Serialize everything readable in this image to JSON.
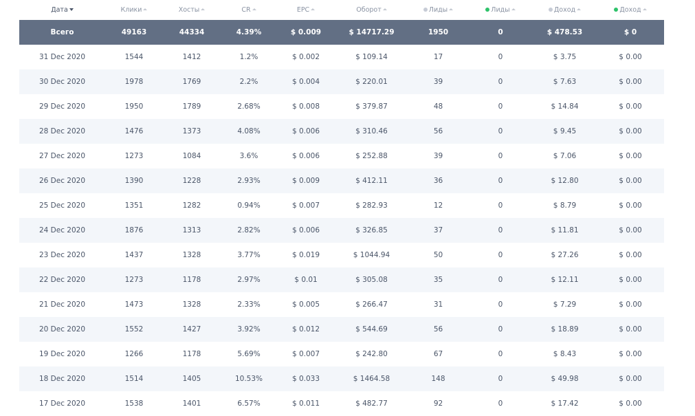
{
  "colors": {
    "header_text": "#8a93a3",
    "total_bg": "#626f84",
    "row_alt_bg": "#f3f6fa",
    "dot_gray": "#c7ccd6",
    "dot_green": "#2ec26a"
  },
  "columns": [
    {
      "key": "date",
      "label": "Дата",
      "sort": "desc",
      "dot": null
    },
    {
      "key": "clicks",
      "label": "Клики",
      "sort": "asc",
      "dot": null
    },
    {
      "key": "hosts",
      "label": "Хосты",
      "sort": "asc",
      "dot": null
    },
    {
      "key": "cr",
      "label": "CR",
      "sort": "asc",
      "dot": null
    },
    {
      "key": "epc",
      "label": "EPC",
      "sort": "asc",
      "dot": null
    },
    {
      "key": "turnover",
      "label": "Оборот",
      "sort": "asc",
      "dot": null
    },
    {
      "key": "leads_all",
      "label": "Лиды",
      "sort": "asc",
      "dot": "gray"
    },
    {
      "key": "leads_approved",
      "label": "Лиды",
      "sort": "asc",
      "dot": "green"
    },
    {
      "key": "income_all",
      "label": "Доход",
      "sort": "asc",
      "dot": "gray"
    },
    {
      "key": "income_approved",
      "label": "Доход",
      "sort": "asc",
      "dot": "green"
    }
  ],
  "total": [
    "Всего",
    "49163",
    "44334",
    "4.39%",
    "$ 0.009",
    "$ 14717.29",
    "1950",
    "0",
    "$ 478.53",
    "$ 0"
  ],
  "rows": [
    [
      "31 Dec 2020",
      "1544",
      "1412",
      "1.2%",
      "$ 0.002",
      "$ 109.14",
      "17",
      "0",
      "$ 3.75",
      "$ 0.00"
    ],
    [
      "30 Dec 2020",
      "1978",
      "1769",
      "2.2%",
      "$ 0.004",
      "$ 220.01",
      "39",
      "0",
      "$ 7.63",
      "$ 0.00"
    ],
    [
      "29 Dec 2020",
      "1950",
      "1789",
      "2.68%",
      "$ 0.008",
      "$ 379.87",
      "48",
      "0",
      "$ 14.84",
      "$ 0.00"
    ],
    [
      "28 Dec 2020",
      "1476",
      "1373",
      "4.08%",
      "$ 0.006",
      "$ 310.46",
      "56",
      "0",
      "$ 9.45",
      "$ 0.00"
    ],
    [
      "27 Dec 2020",
      "1273",
      "1084",
      "3.6%",
      "$ 0.006",
      "$ 252.88",
      "39",
      "0",
      "$ 7.06",
      "$ 0.00"
    ],
    [
      "26 Dec 2020",
      "1390",
      "1228",
      "2.93%",
      "$ 0.009",
      "$ 412.11",
      "36",
      "0",
      "$ 12.80",
      "$ 0.00"
    ],
    [
      "25 Dec 2020",
      "1351",
      "1282",
      "0.94%",
      "$ 0.007",
      "$ 282.93",
      "12",
      "0",
      "$ 8.79",
      "$ 0.00"
    ],
    [
      "24 Dec 2020",
      "1876",
      "1313",
      "2.82%",
      "$ 0.006",
      "$ 326.85",
      "37",
      "0",
      "$ 11.81",
      "$ 0.00"
    ],
    [
      "23 Dec 2020",
      "1437",
      "1328",
      "3.77%",
      "$ 0.019",
      "$ 1044.94",
      "50",
      "0",
      "$ 27.26",
      "$ 0.00"
    ],
    [
      "22 Dec 2020",
      "1273",
      "1178",
      "2.97%",
      "$ 0.01",
      "$ 305.08",
      "35",
      "0",
      "$ 12.11",
      "$ 0.00"
    ],
    [
      "21 Dec 2020",
      "1473",
      "1328",
      "2.33%",
      "$ 0.005",
      "$ 266.47",
      "31",
      "0",
      "$ 7.29",
      "$ 0.00"
    ],
    [
      "20 Dec 2020",
      "1552",
      "1427",
      "3.92%",
      "$ 0.012",
      "$ 544.69",
      "56",
      "0",
      "$ 18.89",
      "$ 0.00"
    ],
    [
      "19 Dec 2020",
      "1266",
      "1178",
      "5.69%",
      "$ 0.007",
      "$ 242.80",
      "67",
      "0",
      "$ 8.43",
      "$ 0.00"
    ],
    [
      "18 Dec 2020",
      "1514",
      "1405",
      "10.53%",
      "$ 0.033",
      "$ 1464.58",
      "148",
      "0",
      "$ 49.98",
      "$ 0.00"
    ],
    [
      "17 Dec 2020",
      "1538",
      "1401",
      "6.57%",
      "$ 0.011",
      "$ 482.77",
      "92",
      "0",
      "$ 17.42",
      "$ 0.00"
    ]
  ]
}
